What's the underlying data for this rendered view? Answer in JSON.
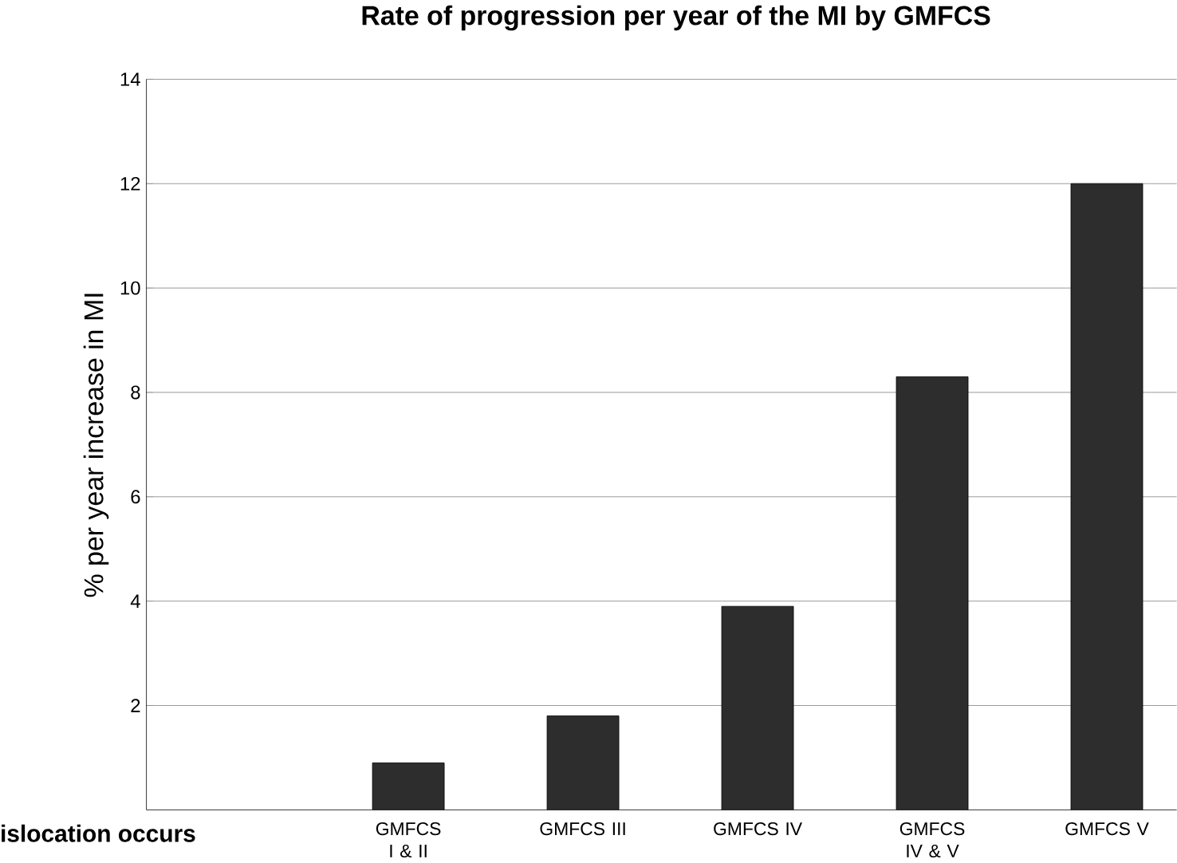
{
  "chart_data": {
    "type": "bar",
    "title": "Rate of progression per year of the MI by GMFCS",
    "ylabel": "% per year increase in MI",
    "categories": [
      "GMFCS I & II",
      "GMFCS III",
      "GMFCS IV",
      "GMFCS IV & V",
      "GMFCS V"
    ],
    "values": [
      0.9,
      1.8,
      3.9,
      8.3,
      12.0
    ],
    "color": "#2d2d2d",
    "ylim": [
      0,
      14
    ],
    "yticks": [
      2,
      4,
      6,
      8,
      10,
      12,
      14
    ],
    "grid": "y",
    "annotations": [
      "islocation occurs"
    ]
  }
}
